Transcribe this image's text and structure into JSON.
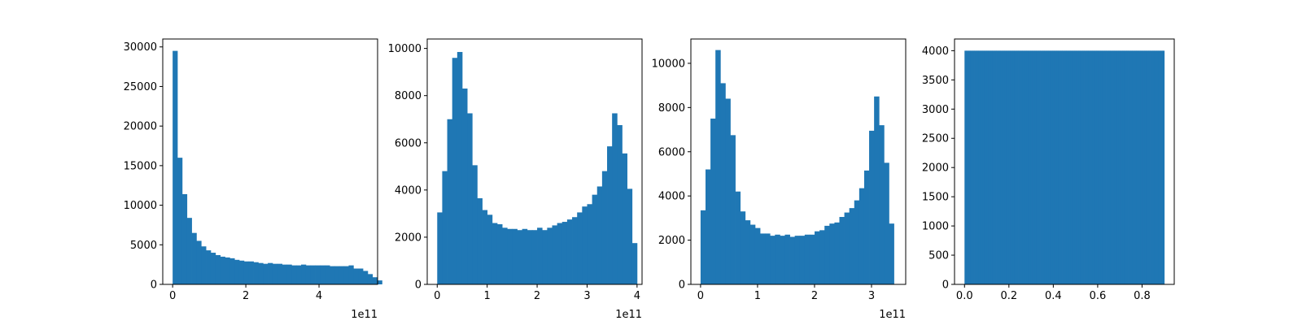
{
  "colors": {
    "bar": "#1f77b4",
    "axis": "#000000",
    "background": "#ffffff"
  },
  "chart_data": [
    {
      "type": "bar",
      "subtype": "histogram",
      "title": "",
      "xlabel": "",
      "ylabel": "",
      "grid": false,
      "x_offset_label": "1e11",
      "xlim": [
        -0.27,
        5.6
      ],
      "ylim": [
        0,
        31000
      ],
      "x_ticks": [
        0,
        2,
        4
      ],
      "x_tick_labels": [
        "0",
        "2",
        "4"
      ],
      "y_ticks": [
        0,
        5000,
        10000,
        15000,
        20000,
        25000,
        30000
      ],
      "y_tick_labels": [
        "0",
        "5000",
        "10000",
        "15000",
        "20000",
        "25000",
        "30000"
      ],
      "bin_start": 0,
      "bin_width": 0.13,
      "values": [
        29500,
        16000,
        11400,
        8400,
        6500,
        5500,
        4800,
        4300,
        4000,
        3700,
        3500,
        3400,
        3300,
        3100,
        3000,
        2900,
        2900,
        2800,
        2700,
        2600,
        2700,
        2600,
        2600,
        2500,
        2500,
        2400,
        2400,
        2500,
        2400,
        2400,
        2400,
        2400,
        2400,
        2300,
        2300,
        2300,
        2300,
        2400,
        2000,
        2000,
        1700,
        1300,
        900,
        500
      ]
    },
    {
      "type": "bar",
      "subtype": "histogram",
      "title": "",
      "xlabel": "",
      "ylabel": "",
      "grid": false,
      "x_offset_label": "1e11",
      "xlim": [
        -0.2,
        4.1
      ],
      "ylim": [
        0,
        10400
      ],
      "x_ticks": [
        0,
        1,
        2,
        3,
        4
      ],
      "x_tick_labels": [
        "0",
        "1",
        "2",
        "3",
        "4"
      ],
      "y_ticks": [
        0,
        2000,
        4000,
        6000,
        8000,
        10000
      ],
      "y_tick_labels": [
        "0",
        "2000",
        "4000",
        "6000",
        "8000",
        "10000"
      ],
      "bin_start": 0,
      "bin_width": 0.1,
      "values": [
        3050,
        4800,
        7000,
        9600,
        9850,
        8300,
        7250,
        5050,
        3650,
        3150,
        2950,
        2600,
        2550,
        2400,
        2350,
        2350,
        2300,
        2350,
        2300,
        2300,
        2400,
        2300,
        2400,
        2500,
        2600,
        2650,
        2750,
        2850,
        3050,
        3300,
        3400,
        3800,
        4150,
        4800,
        5850,
        7250,
        6750,
        5550,
        4050,
        1750
      ]
    },
    {
      "type": "bar",
      "subtype": "histogram",
      "title": "",
      "xlabel": "",
      "ylabel": "",
      "grid": false,
      "x_offset_label": "1e11",
      "xlim": [
        -0.17,
        3.6
      ],
      "ylim": [
        0,
        11100
      ],
      "x_ticks": [
        0,
        1,
        2,
        3
      ],
      "x_tick_labels": [
        "0",
        "1",
        "2",
        "3"
      ],
      "y_ticks": [
        0,
        2000,
        4000,
        6000,
        8000,
        10000
      ],
      "y_tick_labels": [
        "0",
        "2000",
        "4000",
        "6000",
        "8000",
        "10000"
      ],
      "bin_start": 0,
      "bin_width": 0.087,
      "values": [
        3350,
        5200,
        7500,
        10600,
        9100,
        8400,
        6750,
        4200,
        3300,
        2900,
        2700,
        2550,
        2300,
        2300,
        2200,
        2250,
        2200,
        2250,
        2150,
        2200,
        2200,
        2250,
        2250,
        2400,
        2450,
        2650,
        2750,
        2800,
        3050,
        3250,
        3450,
        3800,
        4350,
        5150,
        6950,
        8500,
        7200,
        5500,
        2750
      ]
    },
    {
      "type": "bar",
      "subtype": "histogram",
      "title": "",
      "xlabel": "",
      "ylabel": "",
      "grid": false,
      "x_offset_label": "",
      "xlim": [
        -0.045,
        0.945
      ],
      "ylim": [
        0,
        4200
      ],
      "x_ticks": [
        0,
        0.2,
        0.4,
        0.6,
        0.8
      ],
      "x_tick_labels": [
        "0.0",
        "0.2",
        "0.4",
        "0.6",
        "0.8"
      ],
      "y_ticks": [
        0,
        500,
        1000,
        1500,
        2000,
        2500,
        3000,
        3500,
        4000
      ],
      "y_tick_labels": [
        "0",
        "500",
        "1000",
        "1500",
        "2000",
        "2500",
        "3000",
        "3500",
        "4000"
      ],
      "bin_start": 0,
      "bin_width": 0.009,
      "values": [
        4000,
        4000,
        4000,
        4000,
        4000,
        4000,
        4000,
        4000,
        4000,
        4000,
        4000,
        4000,
        4000,
        4000,
        4000,
        4000,
        4000,
        4000,
        4000,
        4000,
        4000,
        4000,
        4000,
        4000,
        4000,
        4000,
        4000,
        4000,
        4000,
        4000,
        4000,
        4000,
        4000,
        4000,
        4000,
        4000,
        4000,
        4000,
        4000,
        4000,
        4000,
        4000,
        4000,
        4000,
        4000,
        4000,
        4000,
        4000,
        4000,
        4000,
        4000,
        4000,
        4000,
        4000,
        4000,
        4000,
        4000,
        4000,
        4000,
        4000,
        4000,
        4000,
        4000,
        4000,
        4000,
        4000,
        4000,
        4000,
        4000,
        4000,
        4000,
        4000,
        4000,
        4000,
        4000,
        4000,
        4000,
        4000,
        4000,
        4000,
        4000,
        4000,
        4000,
        4000,
        4000,
        4000,
        4000,
        4000,
        4000,
        4000,
        4000,
        4000,
        4000,
        4000,
        4000,
        4000,
        4000,
        4000,
        4000,
        4000
      ]
    }
  ]
}
